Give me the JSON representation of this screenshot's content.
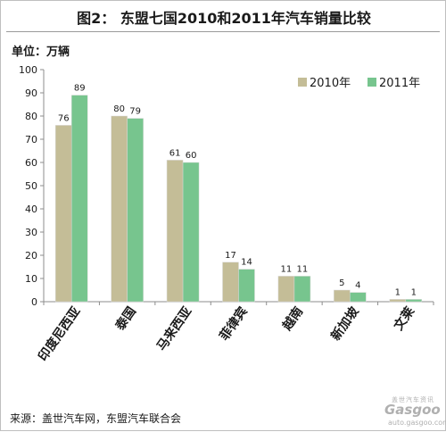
{
  "header": {
    "title": "图2：  东盟七国2010和2011年汽车销量比较"
  },
  "unit_label": "单位：万辆",
  "source": "来源：盖世汽车网，东盟汽车联合会",
  "watermark": {
    "cn": "盖世汽车资讯",
    "logo": "Gasgoo",
    "url": "auto.gasgoo.com"
  },
  "colors": {
    "s2010": "#C4BD97",
    "s2011": "#77C58E"
  },
  "chart_data": {
    "type": "bar",
    "categories": [
      "印度尼西亚",
      "泰国",
      "马来西亚",
      "菲律宾",
      "越南",
      "新加坡",
      "文莱"
    ],
    "series": [
      {
        "name": "2010年",
        "values": [
          76,
          80,
          61,
          17,
          11,
          5,
          1
        ]
      },
      {
        "name": "2011年",
        "values": [
          89,
          79,
          60,
          14,
          11,
          4,
          1
        ]
      }
    ],
    "ylim": [
      0,
      100
    ],
    "yticks": [
      0,
      10,
      20,
      30,
      40,
      50,
      60,
      70,
      80,
      90,
      100
    ],
    "legend": "top-right"
  }
}
